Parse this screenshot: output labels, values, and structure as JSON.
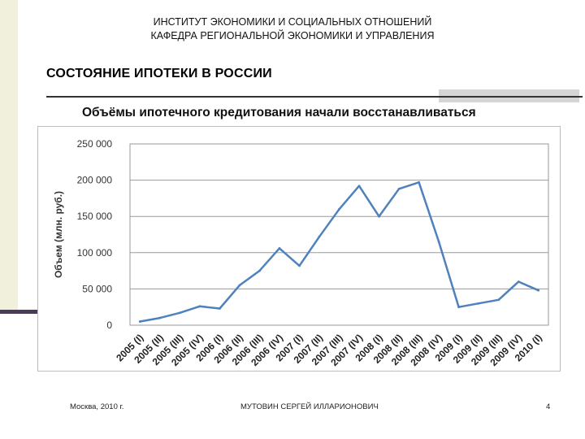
{
  "header": {
    "line1": "ИНСТИТУТ ЭКОНОМИКИ И СОЦИАЛЬНЫХ ОТНОШЕНИЙ",
    "line2": "КАФЕДРА РЕГИОНАЛЬНОЙ ЭКОНОМИКИ И УПРАВЛЕНИЯ"
  },
  "slide": {
    "title": "СОСТОЯНИЕ ИПОТЕКИ В РОССИИ",
    "subtitle": "Объёмы ипотечного кредитования начали восстанавливаться"
  },
  "footer": {
    "left": "Москва, 2010 г.",
    "center": "МУТОВИН СЕРГЕЙ ИЛЛАРИОНОВИЧ",
    "page": "4"
  },
  "colors": {
    "line": "#4f81bd",
    "accent_bar": "#4a3b5a",
    "strip": "#f1f0dc"
  },
  "chart_data": {
    "type": "line",
    "ylabel": "Объем (млн. руб.)",
    "ylim": [
      0,
      250000
    ],
    "ytick_labels": [
      "0",
      "50 000",
      "100 000",
      "150 000",
      "200 000",
      "250 000"
    ],
    "ytick_values": [
      0,
      50000,
      100000,
      150000,
      200000,
      250000
    ],
    "categories": [
      "2005 (I)",
      "2005 (II)",
      "2005 (III)",
      "2005 (IV)",
      "2006 (I)",
      "2006 (II)",
      "2006 (III)",
      "2006 (IV)",
      "2007 (I)",
      "2007 (II)",
      "2007 (III)",
      "2007 (IV)",
      "2008 (I)",
      "2008 (II)",
      "2008 (III)",
      "2008 (IV)",
      "2009 (I)",
      "2009 (II)",
      "2009 (III)",
      "2009 (IV)",
      "2010 (I)"
    ],
    "series": [
      {
        "values": [
          5000,
          10000,
          17000,
          26000,
          23000,
          55000,
          75000,
          106000,
          82000,
          122000,
          160000,
          192000,
          150000,
          188000,
          197000,
          115000,
          25000,
          30000,
          35000,
          60000,
          48000
        ]
      }
    ]
  }
}
